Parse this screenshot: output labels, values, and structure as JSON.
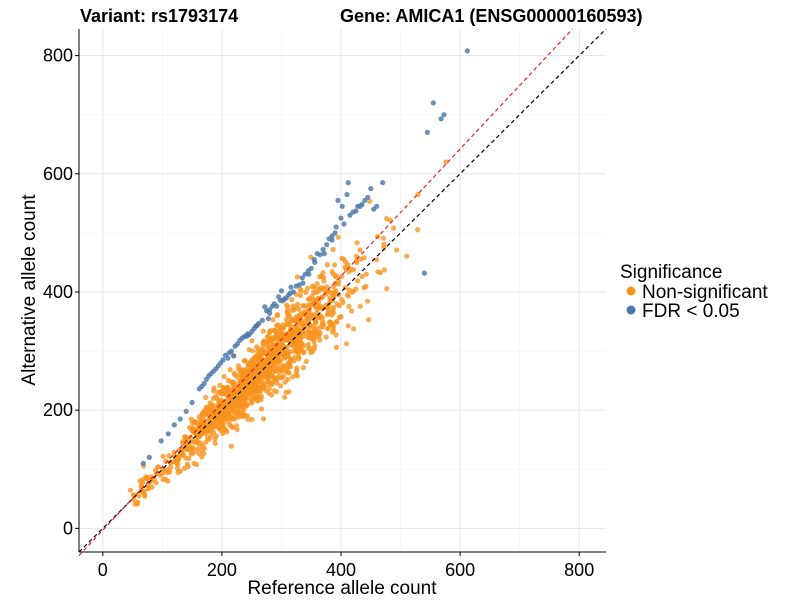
{
  "chart_data": {
    "type": "scatter",
    "title_left": "Variant: rs1793174",
    "title_right": "Gene: AMICA1 (ENSG00000160593)",
    "xlabel": "Reference allele count",
    "ylabel": "Alternative allele count",
    "xlim": [
      -40,
      845
    ],
    "ylim": [
      -40,
      845
    ],
    "x_ticks": [
      0,
      200,
      400,
      600,
      800
    ],
    "y_ticks": [
      0,
      200,
      400,
      600,
      800
    ],
    "grid": true,
    "legend": {
      "title": "Significance",
      "position": "right",
      "entries": [
        {
          "label": "Non-significant",
          "color": "#f7941d"
        },
        {
          "label": "FDR < 0.05",
          "color": "#4a78aa"
        }
      ]
    },
    "reference_lines": [
      {
        "name": "identity",
        "slope": 1,
        "intercept": 0,
        "color": "#000000",
        "dash": true
      },
      {
        "name": "fit",
        "slope": 1.075,
        "intercept": -3,
        "color": "#e8221c",
        "dash": true
      }
    ],
    "series": [
      {
        "name": "FDR < 0.05",
        "color": "#4a78aa",
        "points": [
          [
            612,
            808
          ],
          [
            573,
            700
          ],
          [
            568,
            693
          ],
          [
            555,
            720
          ],
          [
            545,
            670
          ],
          [
            540,
            432
          ],
          [
            470,
            585
          ],
          [
            455,
            540
          ],
          [
            445,
            560
          ],
          [
            440,
            555
          ],
          [
            432,
            545
          ],
          [
            428,
            545
          ],
          [
            420,
            535
          ],
          [
            412,
            585
          ],
          [
            410,
            565
          ],
          [
            405,
            515
          ],
          [
            402,
            545
          ],
          [
            395,
            555
          ],
          [
            392,
            510
          ],
          [
            390,
            500
          ],
          [
            385,
            495
          ],
          [
            380,
            490
          ],
          [
            376,
            480
          ],
          [
            372,
            465
          ],
          [
            365,
            463
          ],
          [
            360,
            465
          ],
          [
            356,
            450
          ],
          [
            350,
            440
          ],
          [
            346,
            430
          ],
          [
            340,
            430
          ],
          [
            336,
            415
          ],
          [
            330,
            412
          ],
          [
            325,
            410
          ],
          [
            320,
            400
          ],
          [
            316,
            408
          ],
          [
            312,
            395
          ],
          [
            308,
            390
          ],
          [
            302,
            385
          ],
          [
            300,
            402
          ],
          [
            298,
            386
          ],
          [
            292,
            376
          ],
          [
            288,
            380
          ],
          [
            285,
            376
          ],
          [
            280,
            364
          ],
          [
            278,
            355
          ],
          [
            272,
            375
          ],
          [
            268,
            352
          ],
          [
            262,
            347
          ],
          [
            258,
            343
          ],
          [
            254,
            338
          ],
          [
            250,
            333
          ],
          [
            246,
            328
          ],
          [
            242,
            325
          ],
          [
            238,
            325
          ],
          [
            234,
            322
          ],
          [
            230,
            318
          ],
          [
            226,
            312
          ],
          [
            222,
            308
          ],
          [
            220,
            292
          ],
          [
            216,
            300
          ],
          [
            212,
            297
          ],
          [
            210,
            288
          ],
          [
            206,
            293
          ],
          [
            202,
            285
          ],
          [
            198,
            280
          ],
          [
            194,
            275
          ],
          [
            190,
            270
          ],
          [
            186,
            266
          ],
          [
            182,
            262
          ],
          [
            178,
            258
          ],
          [
            174,
            252
          ],
          [
            170,
            245
          ],
          [
            166,
            240
          ],
          [
            162,
            236
          ],
          [
            150,
            213
          ],
          [
            140,
            198
          ],
          [
            130,
            185
          ],
          [
            120,
            175
          ],
          [
            110,
            160
          ],
          [
            98,
            148
          ],
          [
            78,
            120
          ],
          [
            68,
            110
          ],
          [
            280,
            370
          ],
          [
            295,
            392
          ],
          [
            315,
            398
          ],
          [
            335,
            424
          ],
          [
            345,
            436
          ],
          [
            355,
            455
          ],
          [
            370,
            472
          ],
          [
            385,
            488
          ],
          [
            400,
            525
          ],
          [
            415,
            530
          ],
          [
            425,
            537
          ],
          [
            435,
            548
          ],
          [
            450,
            575
          ],
          [
            460,
            545
          ],
          [
            243,
            329
          ],
          [
            257,
            342
          ],
          [
            275,
            368
          ],
          [
            305,
            388
          ]
        ]
      },
      {
        "name": "Non-significant",
        "color": "#f7941d",
        "generator": {
          "count": 1350,
          "seed": 1793174,
          "x_range": [
            50,
            680
          ],
          "x_center": 265,
          "slope": 1.005,
          "min_x": 42
        }
      }
    ]
  }
}
